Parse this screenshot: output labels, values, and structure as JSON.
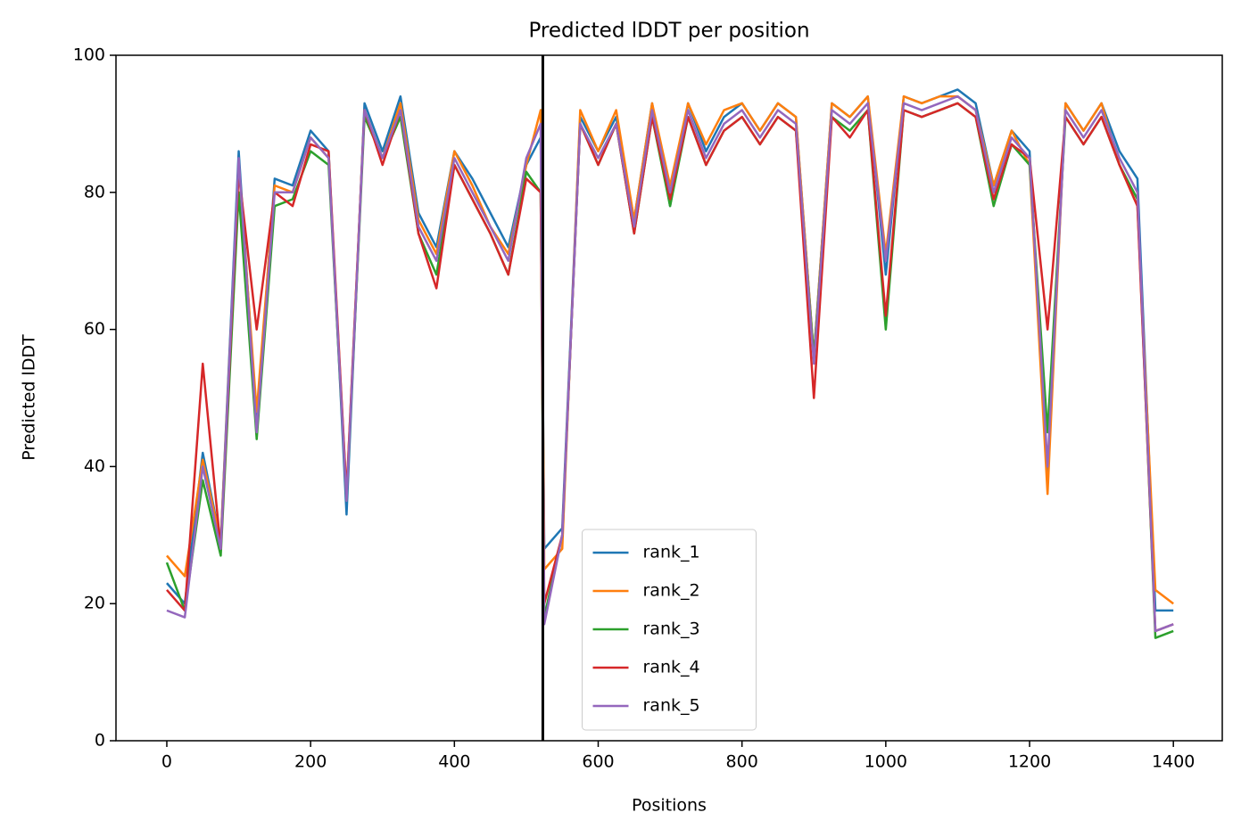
{
  "chart_data": {
    "type": "line",
    "title": "Predicted lDDT per position",
    "xlabel": "Positions",
    "ylabel": "Predicted lDDT",
    "x": [
      0,
      25,
      50,
      75,
      100,
      125,
      150,
      175,
      200,
      225,
      250,
      275,
      300,
      325,
      350,
      375,
      400,
      425,
      450,
      475,
      500,
      520,
      525,
      550,
      575,
      600,
      625,
      650,
      675,
      700,
      725,
      750,
      775,
      800,
      825,
      850,
      875,
      900,
      925,
      950,
      975,
      1000,
      1025,
      1050,
      1075,
      1100,
      1125,
      1150,
      1175,
      1200,
      1225,
      1250,
      1275,
      1300,
      1325,
      1350,
      1375,
      1400
    ],
    "series": [
      {
        "name": "rank_1",
        "color": "#1f77b4",
        "values": [
          23,
          20,
          42,
          29,
          86,
          46,
          82,
          81,
          89,
          86,
          33,
          93,
          86,
          94,
          77,
          72,
          86,
          82,
          77,
          72,
          84,
          88,
          28,
          31,
          91,
          86,
          91,
          76,
          93,
          78,
          93,
          86,
          91,
          93,
          89,
          93,
          91,
          56,
          93,
          91,
          94,
          68,
          94,
          93,
          94,
          95,
          93,
          81,
          89,
          86,
          38,
          93,
          89,
          93,
          86,
          82,
          19,
          19
        ]
      },
      {
        "name": "rank_2",
        "color": "#ff7f0e",
        "values": [
          27,
          24,
          41,
          29,
          84,
          48,
          81,
          80,
          88,
          85,
          36,
          92,
          85,
          93,
          76,
          71,
          86,
          81,
          75,
          71,
          84,
          92,
          25,
          28,
          92,
          86,
          92,
          76,
          93,
          81,
          93,
          87,
          92,
          93,
          89,
          93,
          91,
          56,
          93,
          91,
          94,
          71,
          94,
          93,
          94,
          94,
          92,
          81,
          89,
          84,
          36,
          93,
          89,
          93,
          84,
          78,
          22,
          20
        ]
      },
      {
        "name": "rank_3",
        "color": "#2ca02c",
        "values": [
          26,
          19,
          38,
          27,
          80,
          44,
          78,
          79,
          86,
          84,
          35,
          91,
          85,
          91,
          74,
          68,
          84,
          79,
          74,
          68,
          83,
          80,
          18,
          30,
          90,
          84,
          90,
          74,
          91,
          78,
          91,
          84,
          89,
          91,
          87,
          91,
          89,
          56,
          91,
          89,
          92,
          60,
          92,
          91,
          92,
          93,
          91,
          78,
          87,
          84,
          45,
          91,
          87,
          91,
          84,
          79,
          15,
          16
        ]
      },
      {
        "name": "rank_4",
        "color": "#d62728",
        "values": [
          22,
          19,
          55,
          28,
          83,
          60,
          80,
          78,
          87,
          86,
          36,
          92,
          84,
          92,
          74,
          66,
          84,
          79,
          74,
          68,
          82,
          80,
          20,
          30,
          90,
          84,
          90,
          74,
          91,
          79,
          91,
          84,
          89,
          91,
          87,
          91,
          89,
          50,
          91,
          88,
          92,
          62,
          92,
          91,
          92,
          93,
          91,
          79,
          87,
          85,
          60,
          91,
          87,
          91,
          84,
          78,
          16,
          17
        ]
      },
      {
        "name": "rank_5",
        "color": "#9467bd",
        "values": [
          19,
          18,
          40,
          28,
          85,
          45,
          80,
          80,
          88,
          85,
          35,
          92,
          85,
          92,
          75,
          70,
          85,
          80,
          75,
          70,
          85,
          90,
          17,
          30,
          90,
          85,
          90,
          75,
          92,
          80,
          92,
          85,
          90,
          92,
          88,
          92,
          90,
          55,
          92,
          90,
          93,
          70,
          93,
          92,
          93,
          94,
          92,
          80,
          88,
          85,
          40,
          92,
          88,
          92,
          85,
          80,
          16,
          17
        ]
      }
    ],
    "vline": 523,
    "xlim": [
      -70.7,
      1468
    ],
    "xticks": [
      0,
      200,
      400,
      600,
      800,
      1000,
      1200,
      1400
    ],
    "ylim": [
      0,
      100
    ],
    "yticks": [
      0,
      20,
      40,
      60,
      80,
      100
    ],
    "grid": false,
    "legend": "lower center"
  }
}
